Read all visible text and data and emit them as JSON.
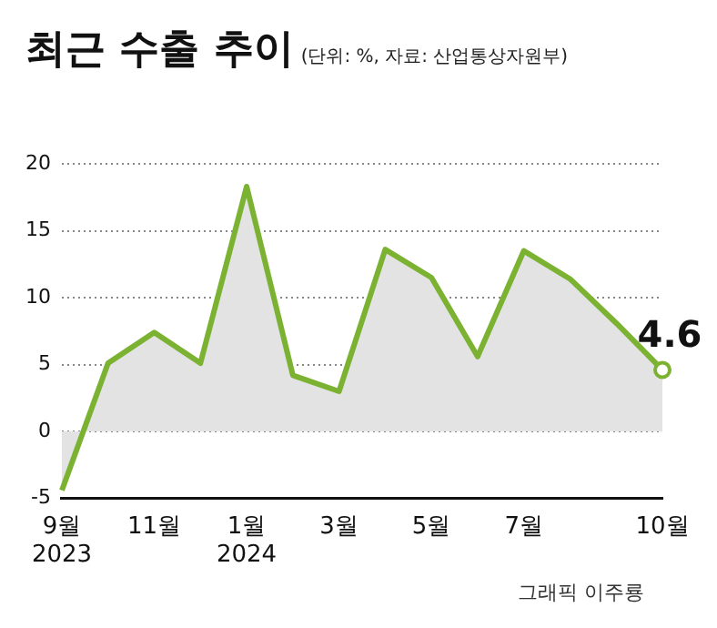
{
  "chart_data": {
    "type": "area",
    "title": "최근 수출 추이",
    "subtitle": "(단위: %, 자료: 산업통상자원부)",
    "categories": [
      "9월\n2023",
      null,
      "11월",
      null,
      "1월\n2024",
      null,
      "3월",
      null,
      "5월",
      null,
      "7월",
      null,
      null,
      "10월"
    ],
    "series": [
      {
        "color": "#7cb232",
        "values": [
          -4.4,
          5.1,
          7.4,
          5.1,
          18.3,
          4.2,
          3.0,
          13.6,
          11.5,
          5.6,
          13.5,
          11.4,
          8.1,
          4.6
        ],
        "value_labels": [
          null,
          null,
          null,
          null,
          null,
          null,
          null,
          null,
          null,
          null,
          null,
          null,
          null,
          "4.6"
        ]
      }
    ],
    "ylim": [
      -5,
      20
    ],
    "yticks": [
      -5,
      0,
      5,
      10,
      15,
      20
    ],
    "grid": "y",
    "legend": false,
    "annotations": [
      "그래픽 이주룡"
    ]
  }
}
